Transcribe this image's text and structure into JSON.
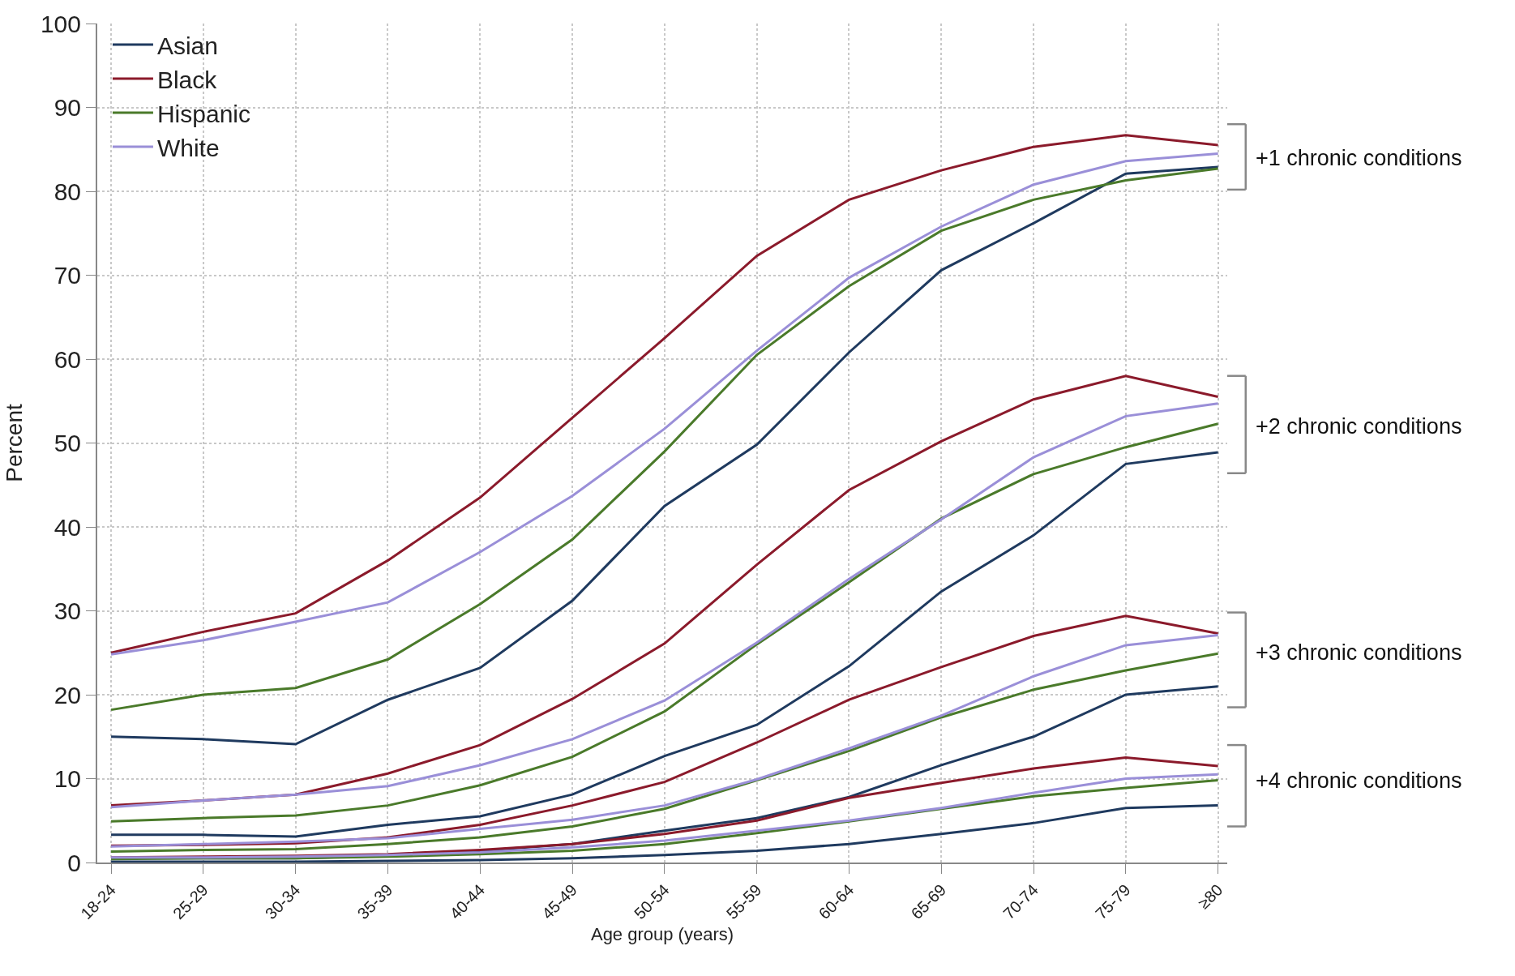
{
  "chart_data": {
    "type": "line",
    "xlabel": "Age group (years)",
    "ylabel": "Percent",
    "categories": [
      "18-24",
      "25-29",
      "30-34",
      "35-39",
      "40-44",
      "45-49",
      "50-54",
      "55-59",
      "60-64",
      "65-69",
      "70-74",
      "75-79",
      "≥80"
    ],
    "ylim": [
      0,
      100
    ],
    "yticks": [
      0,
      10,
      20,
      30,
      40,
      50,
      60,
      70,
      80,
      90,
      100
    ],
    "grid": true,
    "legend": "top left",
    "marker": "none",
    "line_style": "solid",
    "series": [
      {
        "name": "Asian",
        "color": "#1f3a5f",
        "values": [
          15,
          14.7,
          14.1,
          19.4,
          23.2,
          31.2,
          42.5,
          49.8,
          60.8,
          70.6,
          76.2,
          82.1,
          82.9
        ]
      },
      {
        "name": "Black",
        "color": "#8b1a2b",
        "values": [
          25,
          27.5,
          29.7,
          36,
          43.5,
          53,
          62.5,
          72.3,
          79,
          82.5,
          85.3,
          86.7,
          85.5
        ]
      },
      {
        "name": "Hispanic",
        "color": "#4a7a2a",
        "values": [
          18.2,
          20,
          20.8,
          24.2,
          30.8,
          38.5,
          49,
          60.5,
          68.7,
          75.3,
          79,
          81.3,
          82.7
        ]
      },
      {
        "name": "White",
        "color": "#9a8fd8",
        "values": [
          24.8,
          26.5,
          28.7,
          31,
          37,
          43.7,
          51.7,
          61,
          69.7,
          75.8,
          80.8,
          83.6,
          84.5
        ]
      },
      {
        "color": "#1f3a5f",
        "values": [
          3.3,
          3.3,
          3.1,
          4.5,
          5.5,
          8.1,
          12.7,
          16.4,
          23.4,
          32.3,
          39,
          47.5,
          48.9
        ]
      },
      {
        "color": "#8b1a2b",
        "values": [
          6.8,
          7.4,
          8.1,
          10.6,
          14,
          19.5,
          26.1,
          35.5,
          44.4,
          50.2,
          55.2,
          58,
          55.5
        ]
      },
      {
        "color": "#4a7a2a",
        "values": [
          4.9,
          5.3,
          5.6,
          6.8,
          9.2,
          12.6,
          18,
          26,
          33.4,
          41,
          46.3,
          49.5,
          52.3
        ]
      },
      {
        "color": "#9a8fd8",
        "values": [
          6.6,
          7.4,
          8.1,
          9.1,
          11.6,
          14.7,
          19.3,
          26.2,
          33.8,
          40.9,
          48.3,
          53.2,
          54.7
        ]
      },
      {
        "color": "#1f3a5f",
        "values": [
          0.5,
          0.5,
          0.5,
          0.8,
          1.4,
          2.2,
          3.8,
          5.3,
          7.8,
          11.6,
          15,
          20,
          21
        ]
      },
      {
        "color": "#8b1a2b",
        "values": [
          2.0,
          2.1,
          2.3,
          3.0,
          4.5,
          6.8,
          9.6,
          14.3,
          19.4,
          23.3,
          27,
          29.4,
          27.3
        ]
      },
      {
        "color": "#4a7a2a",
        "values": [
          1.3,
          1.5,
          1.6,
          2.2,
          3.0,
          4.3,
          6.4,
          9.8,
          13.3,
          17.3,
          20.6,
          22.9,
          24.9
        ]
      },
      {
        "color": "#9a8fd8",
        "values": [
          1.9,
          2.2,
          2.5,
          2.9,
          4.0,
          5.1,
          6.8,
          9.9,
          13.6,
          17.5,
          22.2,
          25.9,
          27.1
        ]
      },
      {
        "color": "#1f3a5f",
        "values": [
          0.1,
          0.1,
          0.1,
          0.2,
          0.3,
          0.5,
          0.9,
          1.4,
          2.2,
          3.4,
          4.7,
          6.5,
          6.8
        ]
      },
      {
        "color": "#8b1a2b",
        "values": [
          0.6,
          0.7,
          0.8,
          1.0,
          1.5,
          2.2,
          3.4,
          5.0,
          7.7,
          9.5,
          11.2,
          12.5,
          11.5
        ]
      },
      {
        "color": "#4a7a2a",
        "values": [
          0.4,
          0.5,
          0.5,
          0.7,
          1.0,
          1.4,
          2.2,
          3.5,
          4.9,
          6.4,
          7.9,
          8.9,
          9.8
        ]
      },
      {
        "color": "#9a8fd8",
        "values": [
          0.6,
          0.6,
          0.7,
          0.9,
          1.2,
          1.8,
          2.6,
          3.8,
          5.0,
          6.5,
          8.3,
          10.0,
          10.5
        ]
      }
    ],
    "annotations": [
      {
        "text": "+1 chronic conditions",
        "x": "≥80",
        "y": 84
      },
      {
        "text": "+2 chronic conditions",
        "x": "≥80",
        "y": 52
      },
      {
        "text": "+3 chronic conditions",
        "x": "≥80",
        "y": 25
      },
      {
        "text": "+4 chronic conditions",
        "x": "≥80",
        "y": 9.8
      }
    ]
  }
}
